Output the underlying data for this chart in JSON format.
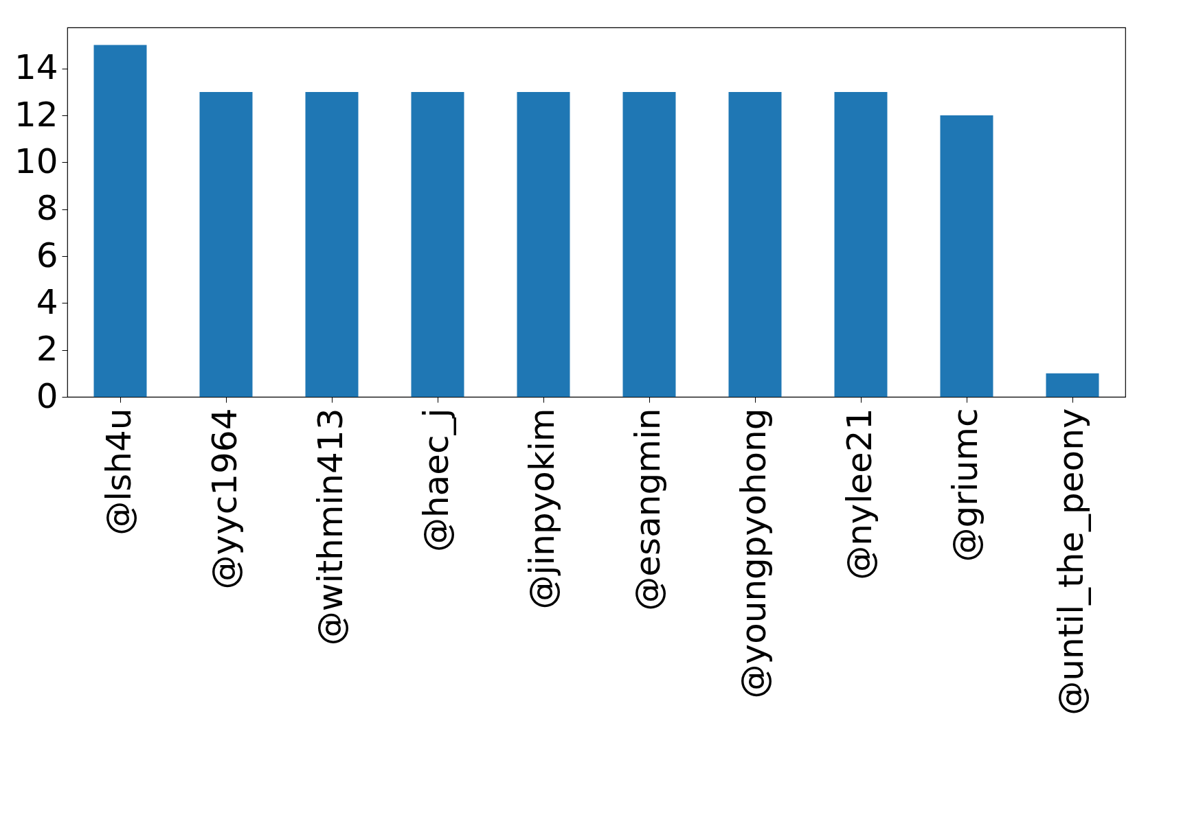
{
  "chart_data": {
    "type": "bar",
    "categories": [
      "@lsh4u",
      "@yyc1964",
      "@withmin413",
      "@haec_j",
      "@jinpyokim",
      "@esangmin",
      "@youngpyohong",
      "@nylee21",
      "@griumc",
      "@until_the_peony"
    ],
    "values": [
      15,
      13,
      13,
      13,
      13,
      13,
      13,
      13,
      12,
      1
    ],
    "color": "#1f77b4",
    "ylim": [
      0,
      15.75
    ],
    "yticks": [
      0,
      2,
      4,
      6,
      8,
      10,
      12,
      14
    ],
    "grid": false
  }
}
